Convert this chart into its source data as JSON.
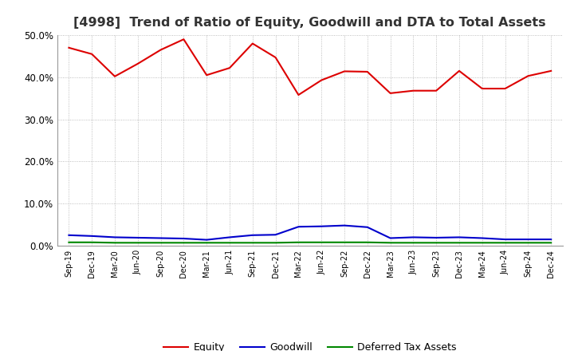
{
  "title": "[4998]  Trend of Ratio of Equity, Goodwill and DTA to Total Assets",
  "x_labels": [
    "Sep-19",
    "Dec-19",
    "Mar-20",
    "Jun-20",
    "Sep-20",
    "Dec-20",
    "Mar-21",
    "Jun-21",
    "Sep-21",
    "Dec-21",
    "Mar-22",
    "Jun-22",
    "Sep-22",
    "Dec-22",
    "Mar-23",
    "Jun-23",
    "Sep-23",
    "Dec-23",
    "Mar-24",
    "Jun-24",
    "Sep-24",
    "Dec-24"
  ],
  "equity": [
    0.47,
    0.455,
    0.402,
    0.432,
    0.465,
    0.49,
    0.405,
    0.422,
    0.48,
    0.447,
    0.358,
    0.393,
    0.414,
    0.413,
    0.362,
    0.368,
    0.368,
    0.415,
    0.373,
    0.373,
    0.403,
    0.415
  ],
  "goodwill": [
    0.025,
    0.023,
    0.02,
    0.019,
    0.018,
    0.017,
    0.014,
    0.02,
    0.025,
    0.026,
    0.045,
    0.046,
    0.048,
    0.044,
    0.018,
    0.02,
    0.019,
    0.02,
    0.018,
    0.015,
    0.015,
    0.015
  ],
  "dta": [
    0.008,
    0.008,
    0.007,
    0.007,
    0.007,
    0.007,
    0.007,
    0.007,
    0.007,
    0.007,
    0.008,
    0.008,
    0.008,
    0.008,
    0.007,
    0.007,
    0.007,
    0.007,
    0.007,
    0.007,
    0.007,
    0.007
  ],
  "equity_color": "#dd0000",
  "goodwill_color": "#0000cc",
  "dta_color": "#008800",
  "ylim": [
    0.0,
    0.5
  ],
  "yticks": [
    0.0,
    0.1,
    0.2,
    0.3,
    0.4,
    0.5
  ],
  "background_color": "#ffffff",
  "grid_color": "#999999",
  "title_fontsize": 11.5,
  "legend_labels": [
    "Equity",
    "Goodwill",
    "Deferred Tax Assets"
  ]
}
